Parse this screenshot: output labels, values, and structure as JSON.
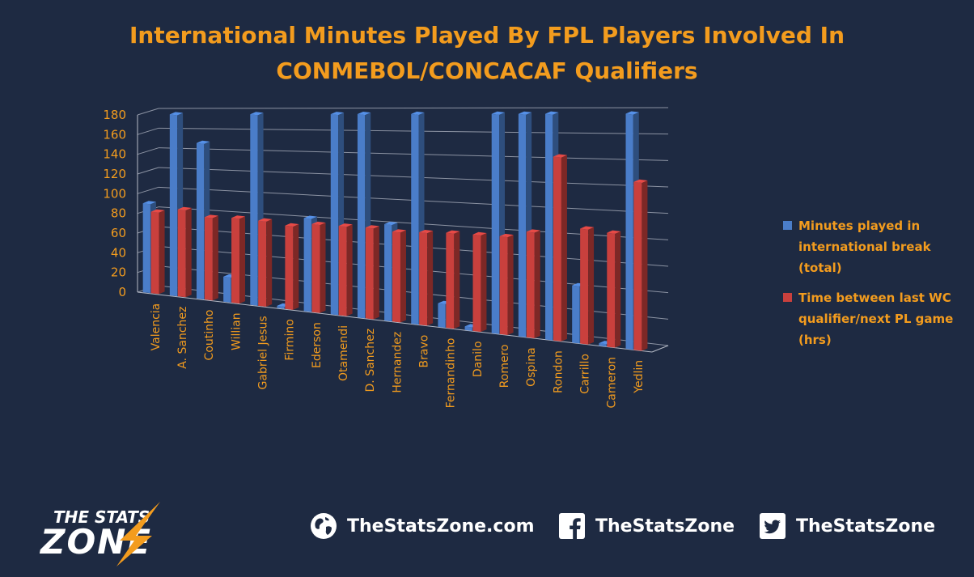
{
  "chart_data": {
    "type": "bar",
    "title": [
      "International Minutes Played By FPL Players Involved In",
      "CONMEBOL/CONCACAF Qualifiers"
    ],
    "categories": [
      "Valencia",
      "A. Sanchez",
      "Coutinho",
      "Willian",
      "Gabriel Jesus",
      "Firmino",
      "Ederson",
      "Otamendi",
      "D. Sanchez",
      "Hernandez",
      "Bravo",
      "Fernandinho",
      "Danilo",
      "Romero",
      "Ospina",
      "Rondon",
      "Carrillo",
      "Cameron",
      "Yedlin"
    ],
    "series": [
      {
        "name": "Minutes played in international break (total)",
        "color": "#4a7dc9",
        "values": [
          90,
          180,
          152,
          24,
          180,
          2,
          85,
          180,
          180,
          84,
          180,
          20,
          3,
          180,
          180,
          180,
          45,
          2,
          180
        ]
      },
      {
        "name": "Time between last WC qualifier/next PL game (hrs)",
        "color": "#c9403d",
        "values": [
          82,
          86,
          80,
          81,
          80,
          77,
          80,
          80,
          80,
          78,
          79,
          80,
          80,
          80,
          85,
          146,
          90,
          88,
          128
        ]
      }
    ],
    "ylim": [
      0,
      180
    ],
    "yticks": [
      0,
      20,
      40,
      60,
      80,
      100,
      120,
      140,
      160,
      180
    ],
    "grid": true,
    "projection": "3d-perspective",
    "legend": "right"
  },
  "footer": {
    "logo": {
      "line1": "THE STATS",
      "line2": "ZONE"
    },
    "website": {
      "icon": "globe-icon",
      "label": "TheStatsZone.com"
    },
    "facebook": {
      "icon": "facebook-icon",
      "label": "TheStatsZone"
    },
    "twitter": {
      "icon": "twitter-icon",
      "label": "TheStatsZone"
    }
  }
}
